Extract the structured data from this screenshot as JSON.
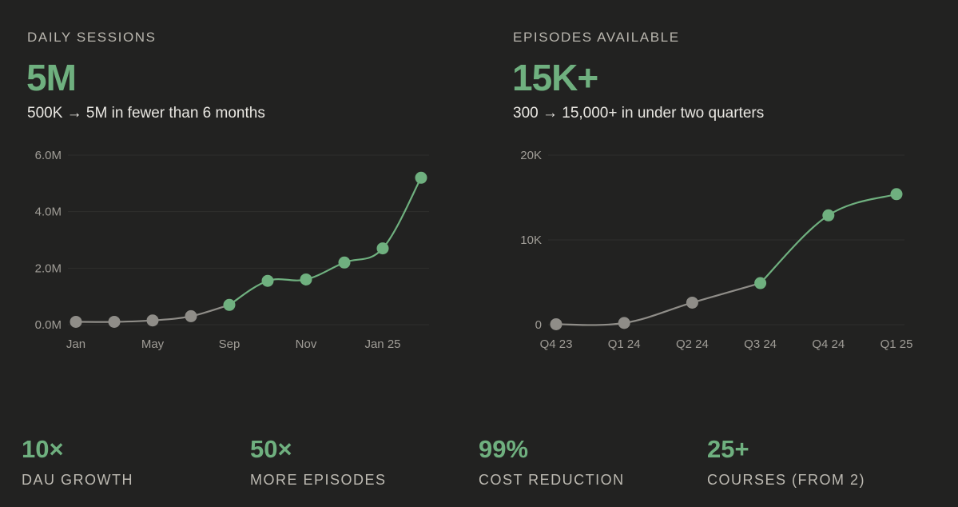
{
  "left_panel": {
    "eyebrow": "DAILY SESSIONS",
    "big_value": "5M",
    "subtitle": "500K → 5M in fewer than 6 months"
  },
  "right_panel": {
    "eyebrow": "EPISODES AVAILABLE",
    "big_value": "15K+",
    "subtitle": "300 → 15,000+ in under two quarters"
  },
  "colors": {
    "background": "#222221",
    "accent_green": "#6fb07f",
    "muted_gray": "#8f8d88",
    "grid": "#2f2f2d"
  },
  "chart_data": [
    {
      "type": "line",
      "title": "DAILY SESSIONS",
      "xlabel": "",
      "ylabel": "",
      "x_index": [
        0,
        1,
        2,
        3,
        4,
        5,
        6,
        7,
        8,
        9
      ],
      "values": [
        0.1,
        0.1,
        0.15,
        0.3,
        0.7,
        1.55,
        1.6,
        2.2,
        2.7,
        5.2
      ],
      "highlight_from_index": 4,
      "xlim": [
        0,
        9
      ],
      "ylim": [
        0,
        6
      ],
      "y_ticks": [
        {
          "value": 0,
          "label": "0.0M"
        },
        {
          "value": 2,
          "label": "2.0M"
        },
        {
          "value": 4,
          "label": "4.0M"
        },
        {
          "value": 6,
          "label": "6.0M"
        }
      ],
      "x_ticks": [
        {
          "value": 0,
          "label": "Jan"
        },
        {
          "value": 2,
          "label": "May"
        },
        {
          "value": 4,
          "label": "Sep"
        },
        {
          "value": 6,
          "label": "Nov"
        },
        {
          "value": 8,
          "label": "Jan 25"
        }
      ],
      "grid": true
    },
    {
      "type": "line",
      "title": "EPISODES AVAILABLE",
      "xlabel": "",
      "ylabel": "",
      "x_index": [
        0,
        1,
        2,
        3,
        4,
        5
      ],
      "values": [
        50,
        200,
        2600,
        4900,
        12900,
        15400
      ],
      "highlight_from_index": 3,
      "xlim": [
        0,
        5
      ],
      "ylim": [
        0,
        20000
      ],
      "y_ticks": [
        {
          "value": 0,
          "label": "0"
        },
        {
          "value": 10000,
          "label": "10K"
        },
        {
          "value": 20000,
          "label": "20K"
        }
      ],
      "x_ticks": [
        {
          "value": 0,
          "label": "Q4 23"
        },
        {
          "value": 1,
          "label": "Q1 24"
        },
        {
          "value": 2,
          "label": "Q2 24"
        },
        {
          "value": 3,
          "label": "Q3 24"
        },
        {
          "value": 4,
          "label": "Q4 24"
        },
        {
          "value": 5,
          "label": "Q1 25"
        }
      ],
      "grid": true
    }
  ],
  "stats": [
    {
      "value": "10×",
      "label": "DAU GROWTH"
    },
    {
      "value": "50×",
      "label": "MORE EPISODES"
    },
    {
      "value": "99%",
      "label": "COST REDUCTION"
    },
    {
      "value": "25+",
      "label": "COURSES (FROM 2)"
    }
  ]
}
